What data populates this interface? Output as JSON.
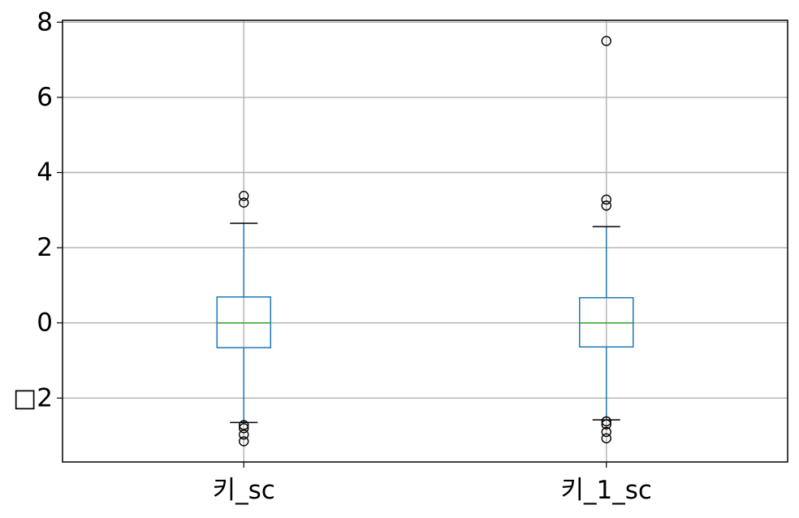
{
  "chart_data": {
    "type": "box",
    "title": "",
    "xlabel": "",
    "ylabel": "",
    "categories": [
      "키_sc",
      "키_1_sc"
    ],
    "ylim": [
      -3.7,
      8.05
    ],
    "yticks": [
      -2,
      0,
      2,
      4,
      6,
      8
    ],
    "ytick_labels": [
      "□2",
      "0",
      "2",
      "4",
      "6",
      "8"
    ],
    "grid": true,
    "boxes": [
      {
        "label": "키_sc",
        "q1": -0.66,
        "median": 0.0,
        "q3": 0.69,
        "whisker_low": -2.65,
        "whisker_high": 2.65,
        "outliers": [
          3.38,
          3.2,
          -2.72,
          -2.8,
          -2.97,
          -3.15
        ]
      },
      {
        "label": "키_1_sc",
        "q1": -0.64,
        "median": 0.0,
        "q3": 0.67,
        "whisker_low": -2.58,
        "whisker_high": 2.56,
        "outliers": [
          7.5,
          3.28,
          3.12,
          -2.62,
          -2.7,
          -2.9,
          -3.07
        ]
      }
    ],
    "colors": {
      "box": "#1f77b4",
      "median": "#2ca02c",
      "whisker_cap": "#000000",
      "outlier": "#000000",
      "grid": "#b0b0b0",
      "frame": "#000000"
    }
  }
}
